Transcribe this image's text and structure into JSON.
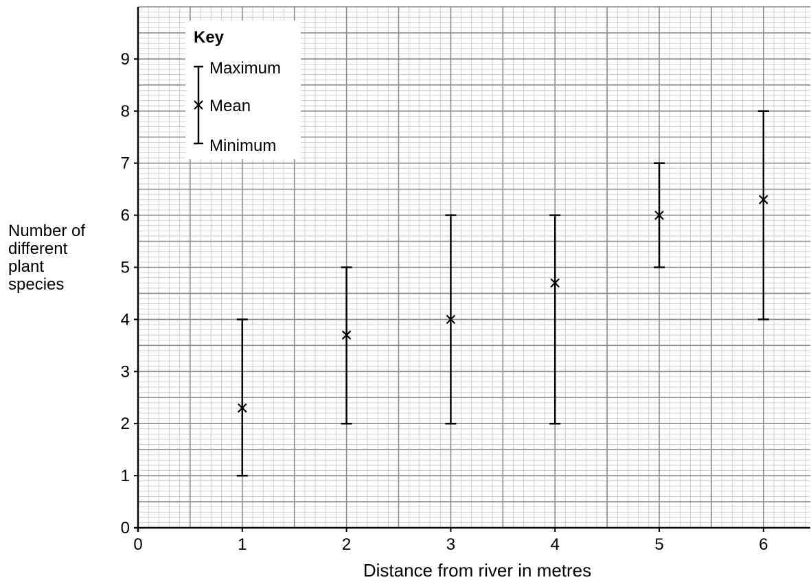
{
  "chart_data": {
    "type": "scatter",
    "title": "",
    "xlabel": "Distance from river in metres",
    "ylabel_lines": [
      "Number of",
      "different",
      "plant",
      "species"
    ],
    "xlim": [
      0,
      6.45
    ],
    "ylim": [
      0,
      10
    ],
    "x_ticks": [
      "0",
      "1",
      "2",
      "3",
      "4",
      "5",
      "6"
    ],
    "y_ticks": [
      "0",
      "1",
      "2",
      "3",
      "4",
      "5",
      "6",
      "7",
      "8",
      "9"
    ],
    "grid": true,
    "legend_position": "top-left",
    "key": {
      "title": "Key",
      "maximum_label": "Maximum",
      "mean_label": "Mean",
      "minimum_label": "Minimum"
    },
    "points": [
      {
        "x": 1,
        "min": 1,
        "mean": 2.3,
        "max": 4
      },
      {
        "x": 2,
        "min": 2,
        "mean": 3.7,
        "max": 5
      },
      {
        "x": 3,
        "min": 2,
        "mean": 4.0,
        "max": 6
      },
      {
        "x": 4,
        "min": 2,
        "mean": 4.7,
        "max": 6
      },
      {
        "x": 5,
        "min": 5,
        "mean": 6.0,
        "max": 7
      },
      {
        "x": 6,
        "min": 4,
        "mean": 6.3,
        "max": 8
      }
    ]
  }
}
